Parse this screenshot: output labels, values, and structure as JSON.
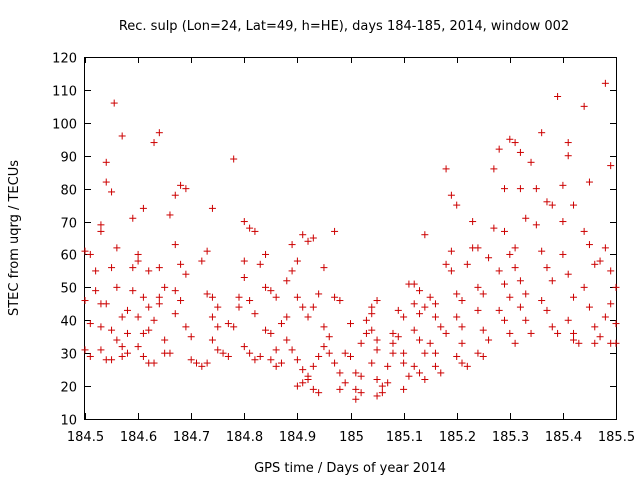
{
  "chart_data": {
    "type": "scatter",
    "title": "Rec. sulp (Lon=24, Lat=49, h=HE), days 184-185, 2014, window 002",
    "xlabel": "GPS time / Days of year 2014",
    "ylabel": "STEC from uqrg / TECUs",
    "xlim": [
      184.5,
      185.5
    ],
    "ylim": [
      10,
      120
    ],
    "xticks": [
      184.5,
      184.6,
      184.7,
      184.8,
      184.9,
      185.0,
      185.1,
      185.2,
      185.3,
      185.4,
      185.5
    ],
    "xtick_labels": [
      "184.5",
      "184.6",
      "184.7",
      "184.8",
      "184.9",
      "185",
      "185.1",
      "185.2",
      "185.3",
      "185.4",
      "185.5"
    ],
    "yticks": [
      10,
      20,
      30,
      40,
      50,
      60,
      70,
      80,
      90,
      100,
      110,
      120
    ],
    "ytick_labels": [
      "10",
      "20",
      "30",
      "40",
      "50",
      "60",
      "70",
      "80",
      "90",
      "100",
      "110",
      "120"
    ],
    "marker": "+",
    "color": "#cc0000",
    "series": [
      {
        "name": "STEC",
        "points": [
          [
            184.5,
            61
          ],
          [
            184.51,
            60
          ],
          [
            184.52,
            55
          ],
          [
            184.5,
            46
          ],
          [
            184.51,
            39
          ],
          [
            184.5,
            31
          ],
          [
            184.51,
            29
          ],
          [
            184.52,
            49
          ],
          [
            184.53,
            45
          ],
          [
            184.53,
            69
          ],
          [
            184.53,
            67
          ],
          [
            184.54,
            88
          ],
          [
            184.54,
            82
          ],
          [
            184.55,
            79
          ],
          [
            184.555,
            106
          ],
          [
            184.56,
            62
          ],
          [
            184.57,
            96
          ],
          [
            184.55,
            56
          ],
          [
            184.56,
            50
          ],
          [
            184.54,
            45
          ],
          [
            184.55,
            37
          ],
          [
            184.56,
            34
          ],
          [
            184.53,
            38
          ],
          [
            184.53,
            31
          ],
          [
            184.54,
            28
          ],
          [
            184.55,
            28
          ],
          [
            184.57,
            32
          ],
          [
            184.57,
            29
          ],
          [
            184.58,
            30
          ],
          [
            184.58,
            36
          ],
          [
            184.57,
            41
          ],
          [
            184.58,
            43
          ],
          [
            184.59,
            49
          ],
          [
            184.59,
            56
          ],
          [
            184.6,
            58
          ],
          [
            184.59,
            71
          ],
          [
            184.61,
            74
          ],
          [
            184.6,
            60
          ],
          [
            184.62,
            55
          ],
          [
            184.61,
            47
          ],
          [
            184.62,
            44
          ],
          [
            184.6,
            41
          ],
          [
            184.61,
            36
          ],
          [
            184.62,
            37
          ],
          [
            184.6,
            32
          ],
          [
            184.61,
            29
          ],
          [
            184.62,
            27
          ],
          [
            184.63,
            27
          ],
          [
            184.63,
            94
          ],
          [
            184.64,
            97
          ],
          [
            184.64,
            56
          ],
          [
            184.65,
            50
          ],
          [
            184.63,
            40
          ],
          [
            184.64,
            45
          ],
          [
            184.64,
            47
          ],
          [
            184.65,
            30
          ],
          [
            184.65,
            34
          ],
          [
            184.66,
            30
          ],
          [
            184.66,
            72
          ],
          [
            184.67,
            78
          ],
          [
            184.68,
            81
          ],
          [
            184.69,
            80
          ],
          [
            184.67,
            63
          ],
          [
            184.68,
            57
          ],
          [
            184.69,
            54
          ],
          [
            184.67,
            49
          ],
          [
            184.68,
            46
          ],
          [
            184.67,
            42
          ],
          [
            184.69,
            38
          ],
          [
            184.7,
            35
          ],
          [
            184.7,
            28
          ],
          [
            184.71,
            27
          ],
          [
            184.72,
            26
          ],
          [
            184.73,
            27
          ],
          [
            184.72,
            58
          ],
          [
            184.73,
            61
          ],
          [
            184.74,
            74
          ],
          [
            184.73,
            48
          ],
          [
            184.74,
            47
          ],
          [
            184.75,
            44
          ],
          [
            184.74,
            41
          ],
          [
            184.75,
            38
          ],
          [
            184.74,
            34
          ],
          [
            184.75,
            31
          ],
          [
            184.76,
            30
          ],
          [
            184.77,
            29
          ],
          [
            184.77,
            39
          ],
          [
            184.78,
            38
          ],
          [
            184.78,
            89
          ],
          [
            184.79,
            47
          ],
          [
            184.79,
            44
          ],
          [
            184.8,
            70
          ],
          [
            184.81,
            68
          ],
          [
            184.82,
            67
          ],
          [
            184.8,
            58
          ],
          [
            184.8,
            53
          ],
          [
            184.81,
            46
          ],
          [
            184.82,
            42
          ],
          [
            184.8,
            32
          ],
          [
            184.81,
            30
          ],
          [
            184.82,
            28
          ],
          [
            184.83,
            29
          ],
          [
            184.83,
            57
          ],
          [
            184.84,
            60
          ],
          [
            184.84,
            50
          ],
          [
            184.85,
            49
          ],
          [
            184.86,
            47
          ],
          [
            184.84,
            37
          ],
          [
            184.85,
            36
          ],
          [
            184.86,
            31
          ],
          [
            184.85,
            28
          ],
          [
            184.86,
            26
          ],
          [
            184.87,
            27
          ],
          [
            184.87,
            39
          ],
          [
            184.88,
            41
          ],
          [
            184.88,
            52
          ],
          [
            184.89,
            55
          ],
          [
            184.9,
            58
          ],
          [
            184.89,
            63
          ],
          [
            184.91,
            66
          ],
          [
            184.92,
            64
          ],
          [
            184.93,
            65
          ],
          [
            184.9,
            47
          ],
          [
            184.91,
            44
          ],
          [
            184.92,
            41
          ],
          [
            184.88,
            34
          ],
          [
            184.89,
            31
          ],
          [
            184.9,
            28
          ],
          [
            184.91,
            25
          ],
          [
            184.92,
            22
          ],
          [
            184.9,
            20
          ],
          [
            184.91,
            21
          ],
          [
            184.92,
            23
          ],
          [
            184.93,
            19
          ],
          [
            184.94,
            18
          ],
          [
            184.93,
            26
          ],
          [
            184.94,
            29
          ],
          [
            184.95,
            32
          ],
          [
            184.96,
            35
          ],
          [
            184.95,
            38
          ],
          [
            184.93,
            44
          ],
          [
            184.94,
            48
          ],
          [
            184.95,
            56
          ],
          [
            184.97,
            67
          ],
          [
            184.97,
            47
          ],
          [
            184.98,
            46
          ],
          [
            184.96,
            30
          ],
          [
            184.97,
            27
          ],
          [
            184.98,
            24
          ],
          [
            184.99,
            21
          ],
          [
            184.98,
            19
          ],
          [
            184.99,
            30
          ],
          [
            185.0,
            39
          ],
          [
            185.0,
            29
          ],
          [
            185.01,
            24
          ],
          [
            185.01,
            19
          ],
          [
            185.01,
            16
          ],
          [
            185.02,
            18
          ],
          [
            185.02,
            23
          ],
          [
            185.02,
            33
          ],
          [
            185.03,
            36
          ],
          [
            185.03,
            40
          ],
          [
            185.04,
            42
          ],
          [
            185.04,
            44
          ],
          [
            185.05,
            46
          ],
          [
            185.04,
            37
          ],
          [
            185.05,
            34
          ],
          [
            185.05,
            31
          ],
          [
            185.04,
            27
          ],
          [
            185.05,
            22
          ],
          [
            185.06,
            20
          ],
          [
            185.05,
            17
          ],
          [
            185.06,
            18
          ],
          [
            185.07,
            21
          ],
          [
            185.07,
            26
          ],
          [
            185.08,
            30
          ],
          [
            185.08,
            33
          ],
          [
            185.09,
            43
          ],
          [
            185.1,
            41
          ],
          [
            185.08,
            36
          ],
          [
            185.09,
            35
          ],
          [
            185.1,
            30
          ],
          [
            185.1,
            27
          ],
          [
            185.11,
            23
          ],
          [
            185.1,
            19
          ],
          [
            185.11,
            51
          ],
          [
            185.12,
            51
          ],
          [
            185.13,
            49
          ],
          [
            185.12,
            45
          ],
          [
            185.13,
            42
          ],
          [
            185.14,
            44
          ],
          [
            185.12,
            37
          ],
          [
            185.13,
            34
          ],
          [
            185.14,
            30
          ],
          [
            185.12,
            26
          ],
          [
            185.13,
            24
          ],
          [
            185.14,
            22
          ],
          [
            185.14,
            66
          ],
          [
            185.15,
            47
          ],
          [
            185.16,
            45
          ],
          [
            185.16,
            41
          ],
          [
            185.15,
            33
          ],
          [
            185.16,
            30
          ],
          [
            185.16,
            26
          ],
          [
            185.17,
            24
          ],
          [
            185.17,
            38
          ],
          [
            185.18,
            36
          ],
          [
            185.18,
            57
          ],
          [
            185.19,
            55
          ],
          [
            185.18,
            86
          ],
          [
            185.19,
            78
          ],
          [
            185.2,
            75
          ],
          [
            185.19,
            61
          ],
          [
            185.2,
            48
          ],
          [
            185.21,
            46
          ],
          [
            185.2,
            41
          ],
          [
            185.21,
            38
          ],
          [
            185.21,
            33
          ],
          [
            185.2,
            29
          ],
          [
            185.21,
            27
          ],
          [
            185.22,
            26
          ],
          [
            185.22,
            57
          ],
          [
            185.23,
            62
          ],
          [
            185.23,
            70
          ],
          [
            185.24,
            62
          ],
          [
            185.24,
            50
          ],
          [
            185.25,
            48
          ],
          [
            185.24,
            43
          ],
          [
            185.25,
            37
          ],
          [
            185.24,
            30
          ],
          [
            185.25,
            29
          ],
          [
            185.26,
            34
          ],
          [
            185.26,
            59
          ],
          [
            185.27,
            68
          ],
          [
            185.27,
            86
          ],
          [
            185.28,
            92
          ],
          [
            185.29,
            80
          ],
          [
            185.29,
            67
          ],
          [
            185.3,
            60
          ],
          [
            185.31,
            62
          ],
          [
            185.28,
            55
          ],
          [
            185.29,
            51
          ],
          [
            185.3,
            47
          ],
          [
            185.28,
            43
          ],
          [
            185.29,
            40
          ],
          [
            185.3,
            36
          ],
          [
            185.31,
            33
          ],
          [
            185.3,
            95
          ],
          [
            185.31,
            94
          ],
          [
            185.32,
            91
          ],
          [
            185.32,
            80
          ],
          [
            185.33,
            71
          ],
          [
            185.31,
            56
          ],
          [
            185.32,
            52
          ],
          [
            185.33,
            48
          ],
          [
            185.32,
            44
          ],
          [
            185.33,
            40
          ],
          [
            185.34,
            36
          ],
          [
            185.34,
            88
          ],
          [
            185.35,
            80
          ],
          [
            185.35,
            69
          ],
          [
            185.36,
            97
          ],
          [
            185.37,
            76
          ],
          [
            185.38,
            75
          ],
          [
            185.36,
            61
          ],
          [
            185.37,
            56
          ],
          [
            185.38,
            52
          ],
          [
            185.36,
            46
          ],
          [
            185.37,
            43
          ],
          [
            185.38,
            38
          ],
          [
            185.39,
            36
          ],
          [
            185.39,
            108
          ],
          [
            185.4,
            81
          ],
          [
            185.4,
            70
          ],
          [
            185.41,
            94
          ],
          [
            185.41,
            90
          ],
          [
            185.42,
            75
          ],
          [
            185.4,
            60
          ],
          [
            185.41,
            54
          ],
          [
            185.42,
            47
          ],
          [
            185.41,
            40
          ],
          [
            185.42,
            36
          ],
          [
            185.42,
            34
          ],
          [
            185.43,
            33
          ],
          [
            185.44,
            105
          ],
          [
            185.45,
            82
          ],
          [
            185.44,
            67
          ],
          [
            185.45,
            63
          ],
          [
            185.46,
            57
          ],
          [
            185.44,
            50
          ],
          [
            185.45,
            44
          ],
          [
            185.46,
            38
          ],
          [
            185.46,
            33
          ],
          [
            185.47,
            35
          ],
          [
            185.47,
            58
          ],
          [
            185.48,
            62
          ],
          [
            185.48,
            112
          ],
          [
            185.49,
            87
          ],
          [
            185.49,
            55
          ],
          [
            185.5,
            50
          ],
          [
            185.49,
            45
          ],
          [
            185.48,
            41
          ],
          [
            185.5,
            39
          ],
          [
            185.49,
            33
          ],
          [
            185.5,
            33
          ]
        ]
      }
    ]
  }
}
